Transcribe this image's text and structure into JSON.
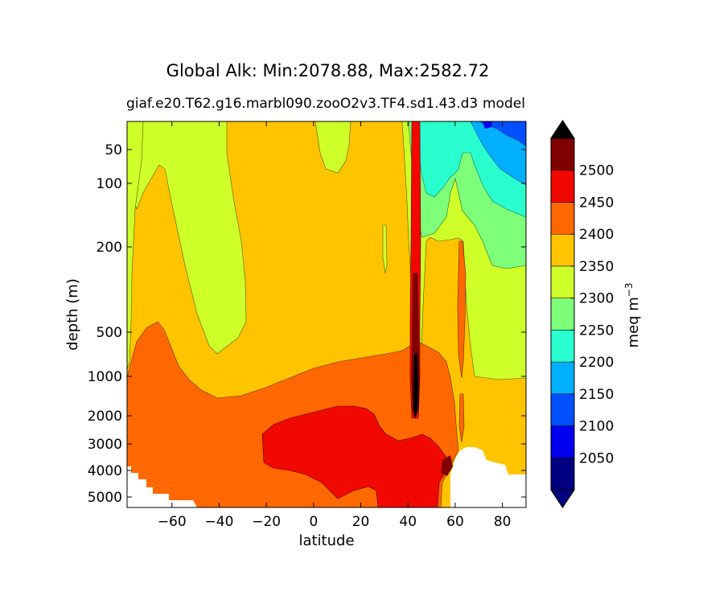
{
  "chart_data": {
    "type": "contourf",
    "title": "Global Alk: Min:2078.88, Max:2582.72",
    "subtitle_left": "giaf.e20.T62.g16.marbl090.zooO2v3.TF4.sd1.43.d3",
    "subtitle_right": "model",
    "xlabel": "latitude",
    "ylabel": "depth (m)",
    "xlim": [
      -79,
      90
    ],
    "ylim": [
      5400,
      15
    ],
    "yscale": "log-like depth",
    "x_ticks": [
      -60,
      -40,
      -20,
      0,
      20,
      40,
      60,
      80
    ],
    "x_tick_labels": [
      "−60",
      "−40",
      "−20",
      "0",
      "20",
      "40",
      "60",
      "80"
    ],
    "y_ticks": [
      50,
      100,
      200,
      500,
      1000,
      2000,
      3000,
      4000,
      5000
    ],
    "y_tick_labels": [
      "50",
      "100",
      "200",
      "500",
      "1000",
      "2000",
      "3000",
      "4000",
      "5000"
    ],
    "colorbar": {
      "label": "meq m",
      "label_exponent": "−3",
      "levels": [
        2000,
        2050,
        2100,
        2150,
        2200,
        2250,
        2300,
        2350,
        2400,
        2450,
        2500,
        2550
      ],
      "tick_labels": [
        "2050",
        "2100",
        "2150",
        "2200",
        "2250",
        "2300",
        "2350",
        "2400",
        "2450",
        "2500"
      ],
      "colors": [
        "#000080",
        "#0000f0",
        "#0050ff",
        "#00b0ff",
        "#29ffce",
        "#7dff7a",
        "#ceff29",
        "#ffc400",
        "#ff6800",
        "#f10800",
        "#800000"
      ],
      "extend": "both"
    },
    "regions": [
      {
        "band": "2300-2350",
        "description": "low-alkalinity tongue in southern ocean upper layer"
      },
      {
        "band": "2350-2400",
        "description": "upper ocean bulk"
      },
      {
        "band": "2400-2450",
        "description": "intermediate and deep water"
      },
      {
        "band": "2450-2500",
        "description": "deep Pacific/Atlantic core near 0-40 latitude"
      },
      {
        "band": "2500-2550",
        "description": "Mediterranean outflow plume near 43 latitude"
      },
      {
        "band": "2150-2250",
        "description": "Arctic surface low alkalinity"
      }
    ],
    "grid": false
  }
}
